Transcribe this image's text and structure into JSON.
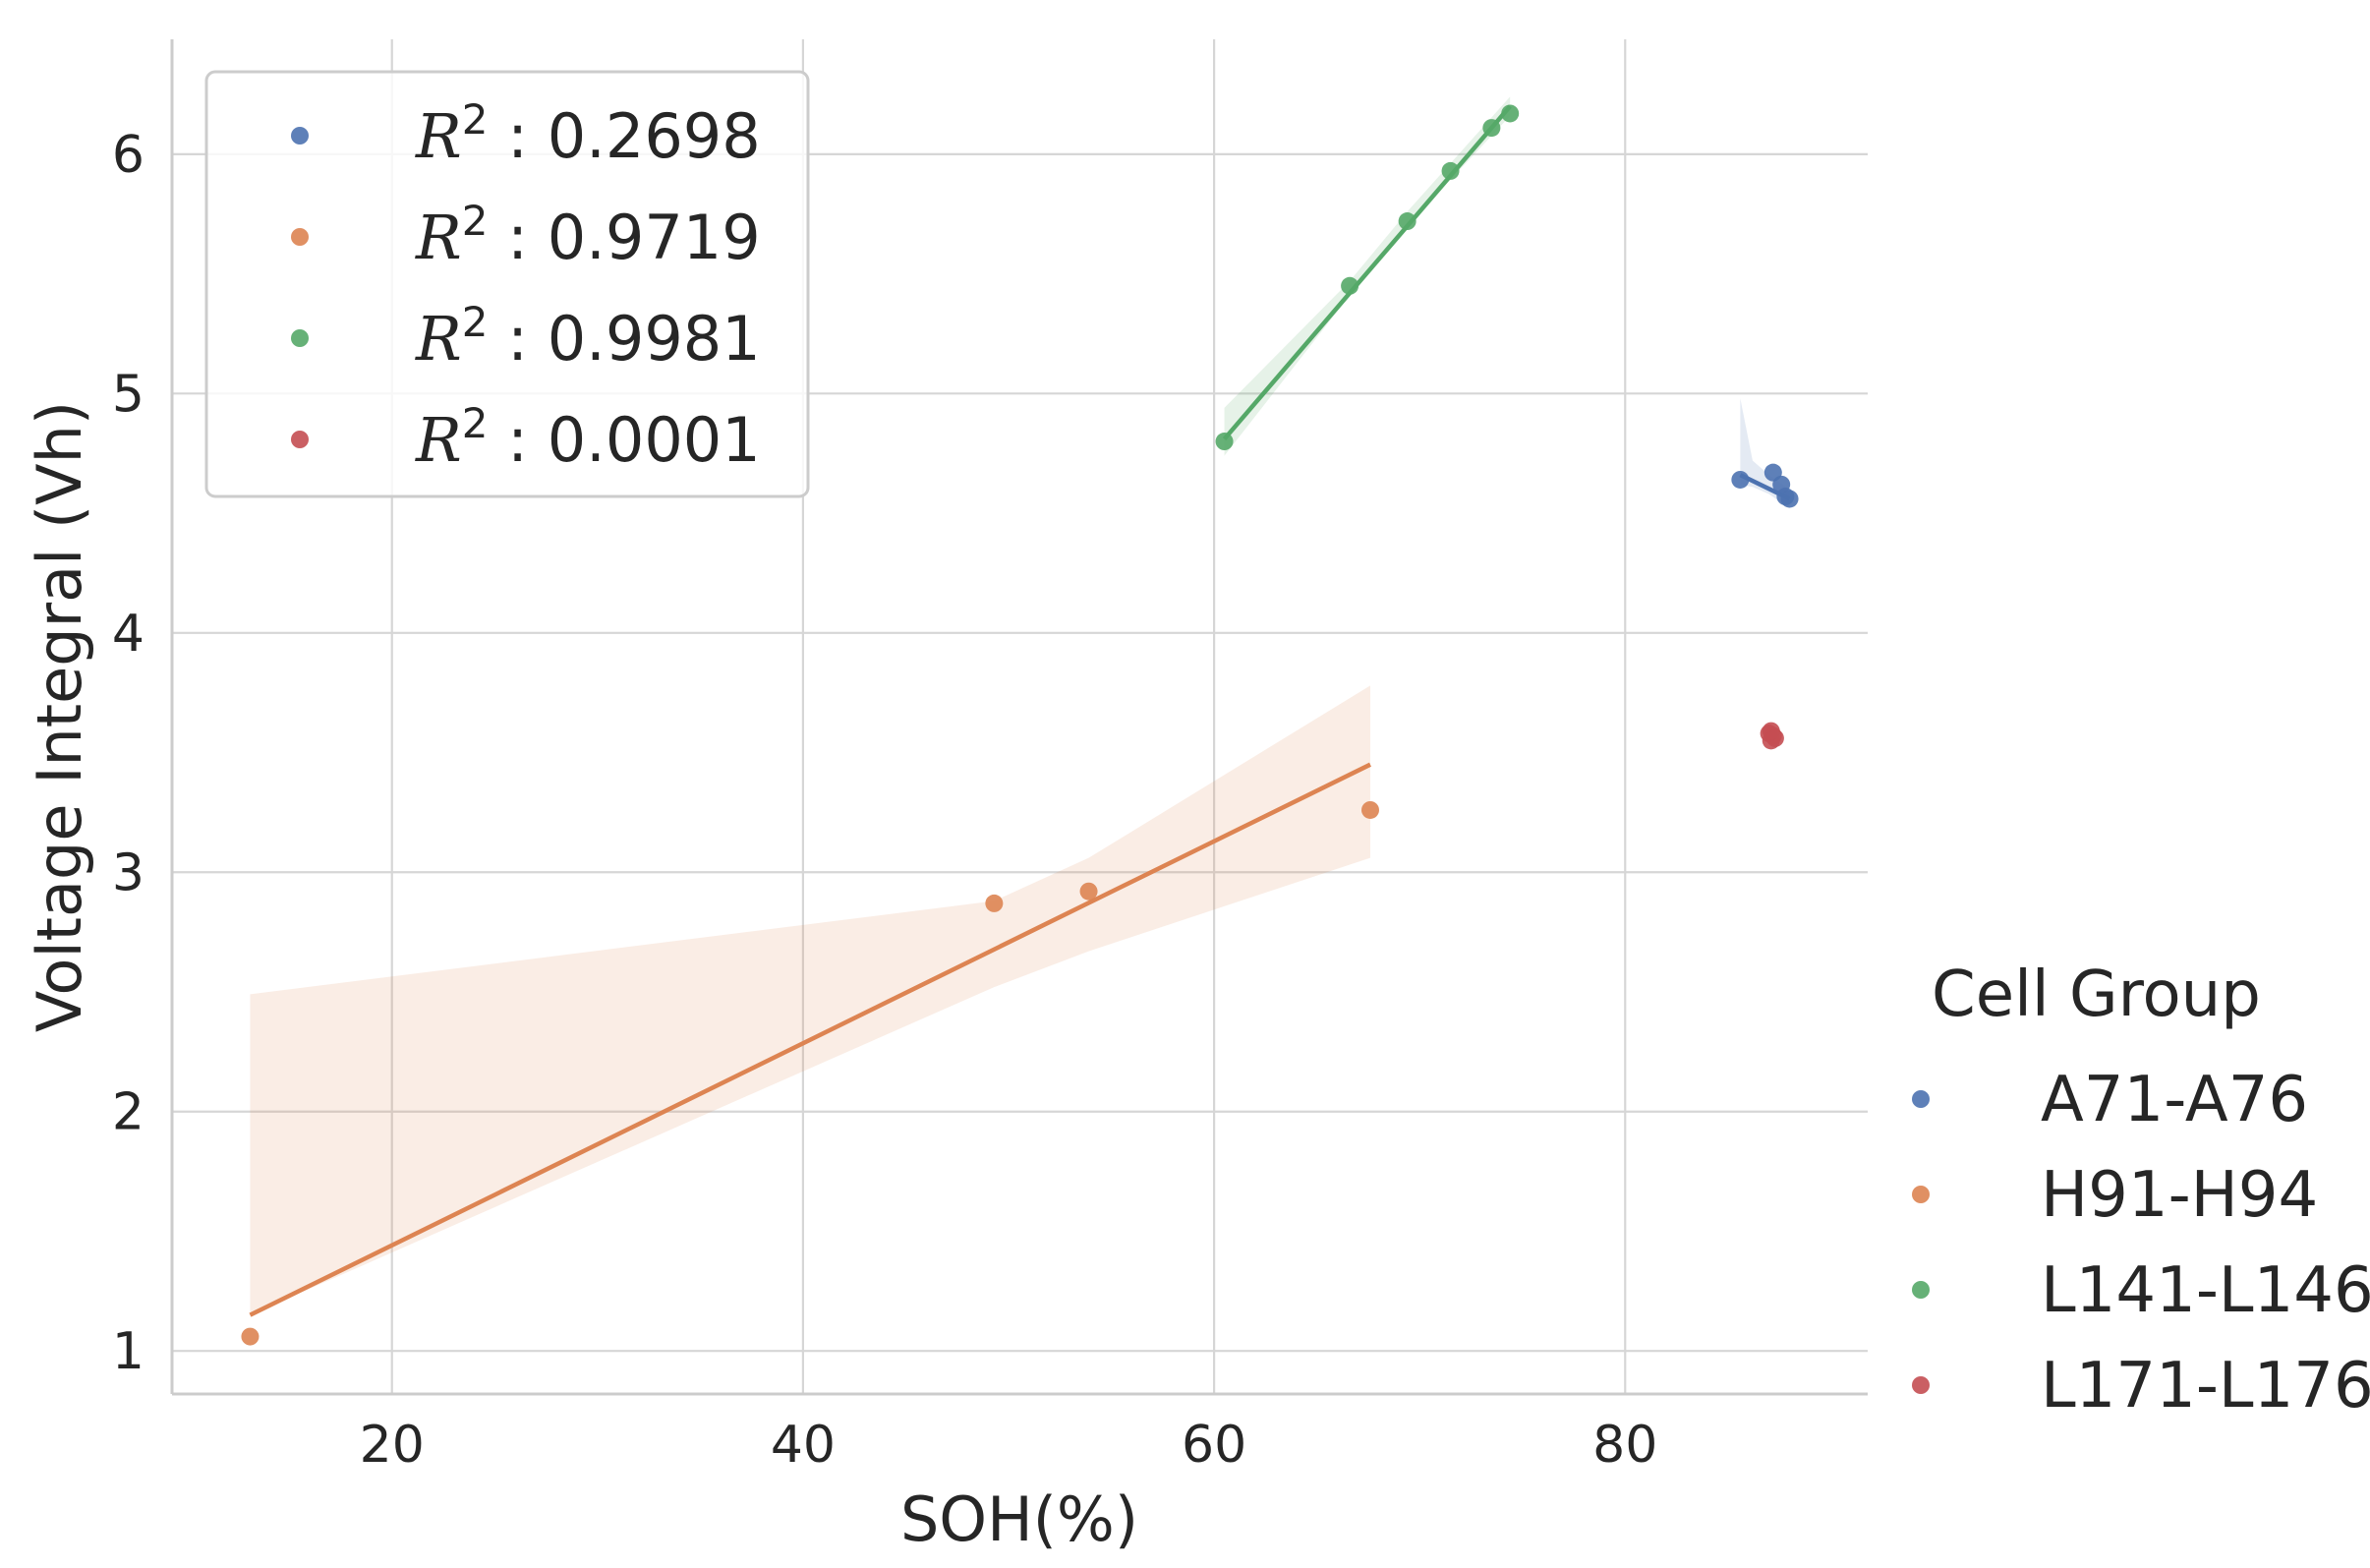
{
  "chart_data": {
    "type": "scatter",
    "title": "",
    "xlabel": "SOH(%)",
    "ylabel": "Voltage Integral  (Vh)",
    "xlim": [
      9.3,
      91.8
    ],
    "ylim": [
      0.82,
      6.48
    ],
    "xticks": [
      20,
      40,
      60,
      80
    ],
    "yticks": [
      1,
      2,
      3,
      4,
      5,
      6
    ],
    "grid": true,
    "legend_title": "Cell Group",
    "legend_placement": "outside right",
    "r2_legend_placement": "top-left",
    "series": [
      {
        "name": "A71-A76",
        "color": "#4c72b0",
        "r2": "0.2698",
        "points": [
          [
            85.6,
            4.64
          ],
          [
            87.2,
            4.67
          ],
          [
            87.6,
            4.62
          ],
          [
            87.8,
            4.57
          ],
          [
            88.0,
            4.56
          ]
        ],
        "fit": [
          [
            85.6,
            4.66
          ],
          [
            88.0,
            4.56
          ]
        ],
        "band": [
          [
            85.6,
            4.98,
            4.62
          ],
          [
            86.2,
            4.72,
            4.61
          ],
          [
            87.0,
            4.66,
            4.58
          ],
          [
            88.0,
            4.6,
            4.52
          ]
        ]
      },
      {
        "name": "H91-H94",
        "color": "#dd8452",
        "r2": "0.9719",
        "points": [
          [
            13.1,
            1.06
          ],
          [
            49.3,
            2.87
          ],
          [
            53.9,
            2.92
          ],
          [
            67.6,
            3.26
          ]
        ],
        "fit": [
          [
            13.1,
            1.15
          ],
          [
            67.6,
            3.45
          ]
        ],
        "band": [
          [
            13.1,
            2.49,
            1.15
          ],
          [
            49.3,
            2.88,
            2.52
          ],
          [
            53.9,
            3.06,
            2.67
          ],
          [
            67.6,
            3.78,
            3.06
          ]
        ]
      },
      {
        "name": "L141-L146",
        "color": "#55a868",
        "r2": "0.9981",
        "points": [
          [
            60.5,
            4.8
          ],
          [
            66.6,
            5.45
          ],
          [
            69.4,
            5.72
          ],
          [
            71.5,
            5.93
          ],
          [
            73.5,
            6.11
          ],
          [
            74.4,
            6.17
          ]
        ],
        "fit": [
          [
            60.5,
            4.81
          ],
          [
            74.4,
            6.2
          ]
        ],
        "band": [
          [
            60.5,
            4.94,
            4.74
          ],
          [
            66.6,
            5.47,
            5.41
          ],
          [
            69.4,
            5.76,
            5.7
          ],
          [
            74.4,
            6.24,
            6.16
          ]
        ]
      },
      {
        "name": "L171-L176",
        "color": "#c44e52",
        "r2": "0.0001",
        "points": [
          [
            87.0,
            3.58
          ],
          [
            87.2,
            3.57
          ],
          [
            87.1,
            3.55
          ],
          [
            87.3,
            3.56
          ],
          [
            87.1,
            3.59
          ]
        ],
        "fit": [],
        "band": []
      }
    ]
  },
  "r2_prefix": "R",
  "r2_sup": "2",
  "r2_sep": " : "
}
